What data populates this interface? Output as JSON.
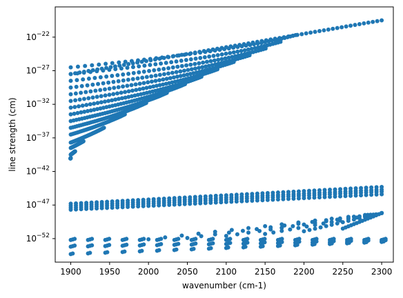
{
  "chart_data": {
    "type": "scatter",
    "title": "",
    "xlabel": "wavenumber (cm-1)",
    "ylabel": "line strength (cm)",
    "xlim": [
      1880,
      2315
    ],
    "ylim_log10": [
      -55.5,
      -17.5
    ],
    "y_scale": "log",
    "grid": false,
    "legend": "none",
    "marker_color": "#1f77b4",
    "x_ticks": [
      1900,
      1950,
      2000,
      2050,
      2100,
      2150,
      2200,
      2250,
      2300
    ],
    "y_ticks_log10": [
      -52,
      -47,
      -42,
      -37,
      -32,
      -27,
      -22
    ],
    "upper_branches": [
      {
        "x_start": 1900,
        "x_vertex": 2230,
        "y_vertex": -19.1,
        "y_start": -21.7,
        "y_end": -26.5
      },
      {
        "x_start": 1900,
        "x_vertex": 2210,
        "y_vertex": -20.0,
        "y_start": -22.7,
        "y_end": -27.5
      },
      {
        "x_start": 1900,
        "x_vertex": 2190,
        "y_vertex": -20.9,
        "y_start": -23.7,
        "y_end": -28.5
      },
      {
        "x_start": 1900,
        "x_vertex": 2168,
        "y_vertex": -21.8,
        "y_start": -24.7,
        "y_end": -29.5
      },
      {
        "x_start": 1900,
        "x_vertex": 2146,
        "y_vertex": -22.7,
        "y_start": -25.7,
        "y_end": -30.5
      },
      {
        "x_start": 1900,
        "x_vertex": 2124,
        "y_vertex": -23.7,
        "y_start": -26.8,
        "y_end": -31.5
      },
      {
        "x_start": 1900,
        "x_vertex": 2102,
        "y_vertex": -24.7,
        "y_start": -27.9,
        "y_end": -32.5
      },
      {
        "x_start": 1900,
        "x_vertex": 2079,
        "y_vertex": -25.7,
        "y_start": -29.0,
        "y_end": -33.5
      },
      {
        "x_start": 1900,
        "x_vertex": 2057,
        "y_vertex": -26.7,
        "y_start": -30.3,
        "y_end": -34.5
      },
      {
        "x_start": 1900,
        "x_vertex": 2034,
        "y_vertex": -27.7,
        "y_start": -31.8,
        "y_end": -35.5
      },
      {
        "x_start": 1900,
        "x_vertex": 2012,
        "y_vertex": -28.7,
        "y_start": -33.5,
        "y_end": -36.5
      },
      {
        "x_start": 1900,
        "x_vertex": 1990,
        "y_vertex": -29.7,
        "y_start": -35.5,
        "y_end": -37.7
      },
      {
        "x_start": 1900,
        "x_vertex": 1968,
        "y_vertex": -30.7,
        "y_start": -37.5,
        "y_end": -38.5
      },
      {
        "x_start": 1900,
        "x_vertex": 1945,
        "y_vertex": -31.7,
        "y_start": -39.0,
        "y_end": -39.5
      },
      {
        "x_start": 1900,
        "x_vertex": 1921,
        "y_vertex": -32.8,
        "y_start": -40.5,
        "y_end": -40.0
      }
    ],
    "rising_band": {
      "x_start": 1900,
      "x_end": 2300,
      "y_start": -27.5,
      "y_end": -19.5
    },
    "lower_bands": [
      {
        "x_start": 1900,
        "x_end": 2300,
        "y_start": -46.8,
        "y_end": -44.3
      },
      {
        "x_start": 1900,
        "x_end": 2300,
        "y_start": -47.1,
        "y_end": -44.7
      },
      {
        "x_start": 1900,
        "x_end": 2300,
        "y_start": -47.4,
        "y_end": -45.0
      },
      {
        "x_start": 1900,
        "x_end": 2300,
        "y_start": -47.7,
        "y_end": -45.4
      }
    ],
    "lowest_rows": [
      {
        "x_start": 1900,
        "x_end": 2300,
        "y_start": -52.2,
        "y_end": -52.2
      },
      {
        "x_start": 1900,
        "x_end": 2300,
        "y_start": -53.2,
        "y_end": -52.4
      },
      {
        "x_start": 1900,
        "x_end": 2300,
        "y_start": -54.3,
        "y_end": -52.5
      }
    ],
    "fan_series": [
      {
        "x_start": 2250,
        "y_start": -50.5
      },
      {
        "x_start": 2200,
        "y_start": -50.9
      },
      {
        "x_start": 2150,
        "y_start": -51.3
      },
      {
        "x_start": 2100,
        "y_start": -51.6
      },
      {
        "x_start": 2050,
        "y_start": -51.9
      },
      {
        "x_start": 2000,
        "y_start": -52.1
      }
    ]
  }
}
